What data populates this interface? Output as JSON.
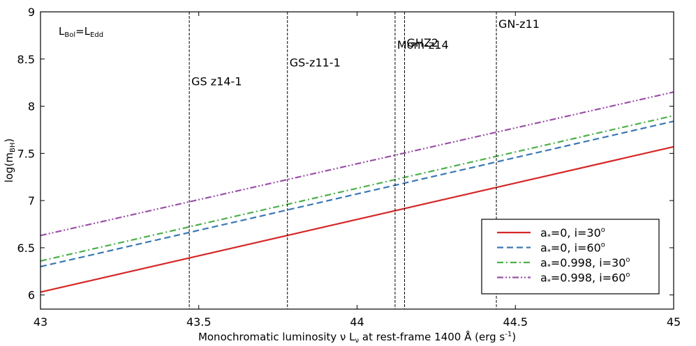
{
  "chart_data": {
    "type": "line",
    "xlabel_parts": {
      "a": "Monochromatic luminosity ν L",
      "a_sub": "ν",
      "b": " at rest-frame 1400 Å (erg s",
      "b_sup": "-1",
      "c": ")"
    },
    "ylabel_parts": {
      "a": "log(m",
      "a_sub": "BH",
      "b": ")"
    },
    "annotation_parts": {
      "a": "L",
      "a_sub": "Bol",
      "b": "=L",
      "b_sub": "Edd"
    },
    "xlim": [
      43,
      45
    ],
    "ylim": [
      5.85,
      9.0
    ],
    "xticks": [
      "43",
      "43.5",
      "44",
      "44.5",
      "45"
    ],
    "yticks": [
      "6",
      "6.5",
      "7",
      "7.5",
      "8",
      "8.5",
      "9"
    ],
    "grid": false,
    "legend_position": "lower-right",
    "series": [
      {
        "name_parts": {
          "a": "a",
          "a_sub": "*",
          "b": "=0, i=30",
          "b_sup": "o"
        },
        "color": "#d62728",
        "dash": "solid",
        "x": [
          43,
          45
        ],
        "y": [
          6.03,
          7.57
        ]
      },
      {
        "name_parts": {
          "a": "a",
          "a_sub": "*",
          "b": "=0, i=60",
          "b_sup": "o"
        },
        "color": "#3a78b4",
        "dash": "dashed",
        "x": [
          43,
          45
        ],
        "y": [
          6.3,
          7.84
        ]
      },
      {
        "name_parts": {
          "a": "a",
          "a_sub": "*",
          "b": "=0.998, i=30",
          "b_sup": "o"
        },
        "color": "#4daf4a",
        "dash": "dashdot",
        "x": [
          43,
          45
        ],
        "y": [
          6.36,
          7.9
        ]
      },
      {
        "name_parts": {
          "a": "a",
          "a_sub": "*",
          "b": "=0.998, i=60",
          "b_sup": "o"
        },
        "color": "#9b4fa8",
        "dash": "dashdotdot",
        "x": [
          43,
          45
        ],
        "y": [
          6.63,
          8.15
        ]
      }
    ],
    "vertical_markers": [
      {
        "label": "GS z14-1",
        "x": 43.47,
        "label_y": 8.22
      },
      {
        "label": "GS-z11-1",
        "x": 43.78,
        "label_y": 8.42
      },
      {
        "label": "Mom-z14",
        "x": 44.12,
        "label_y": 8.61
      },
      {
        "label": "GHZ2",
        "x": 44.15,
        "label_y": 8.63
      },
      {
        "label": "GN-z11",
        "x": 44.44,
        "label_y": 8.83
      }
    ]
  }
}
